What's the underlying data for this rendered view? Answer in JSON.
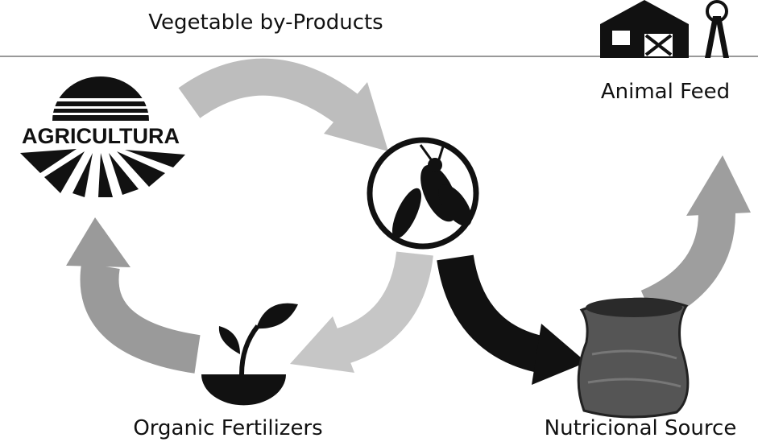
{
  "title": "Vegetable by-Products",
  "nodes": [
    {
      "label": "Animal Feed"
    },
    {
      "label": "AGRICULTURA"
    },
    {
      "label": "Organic Fertilizers"
    },
    {
      "label": "Nutricional Source"
    }
  ]
}
